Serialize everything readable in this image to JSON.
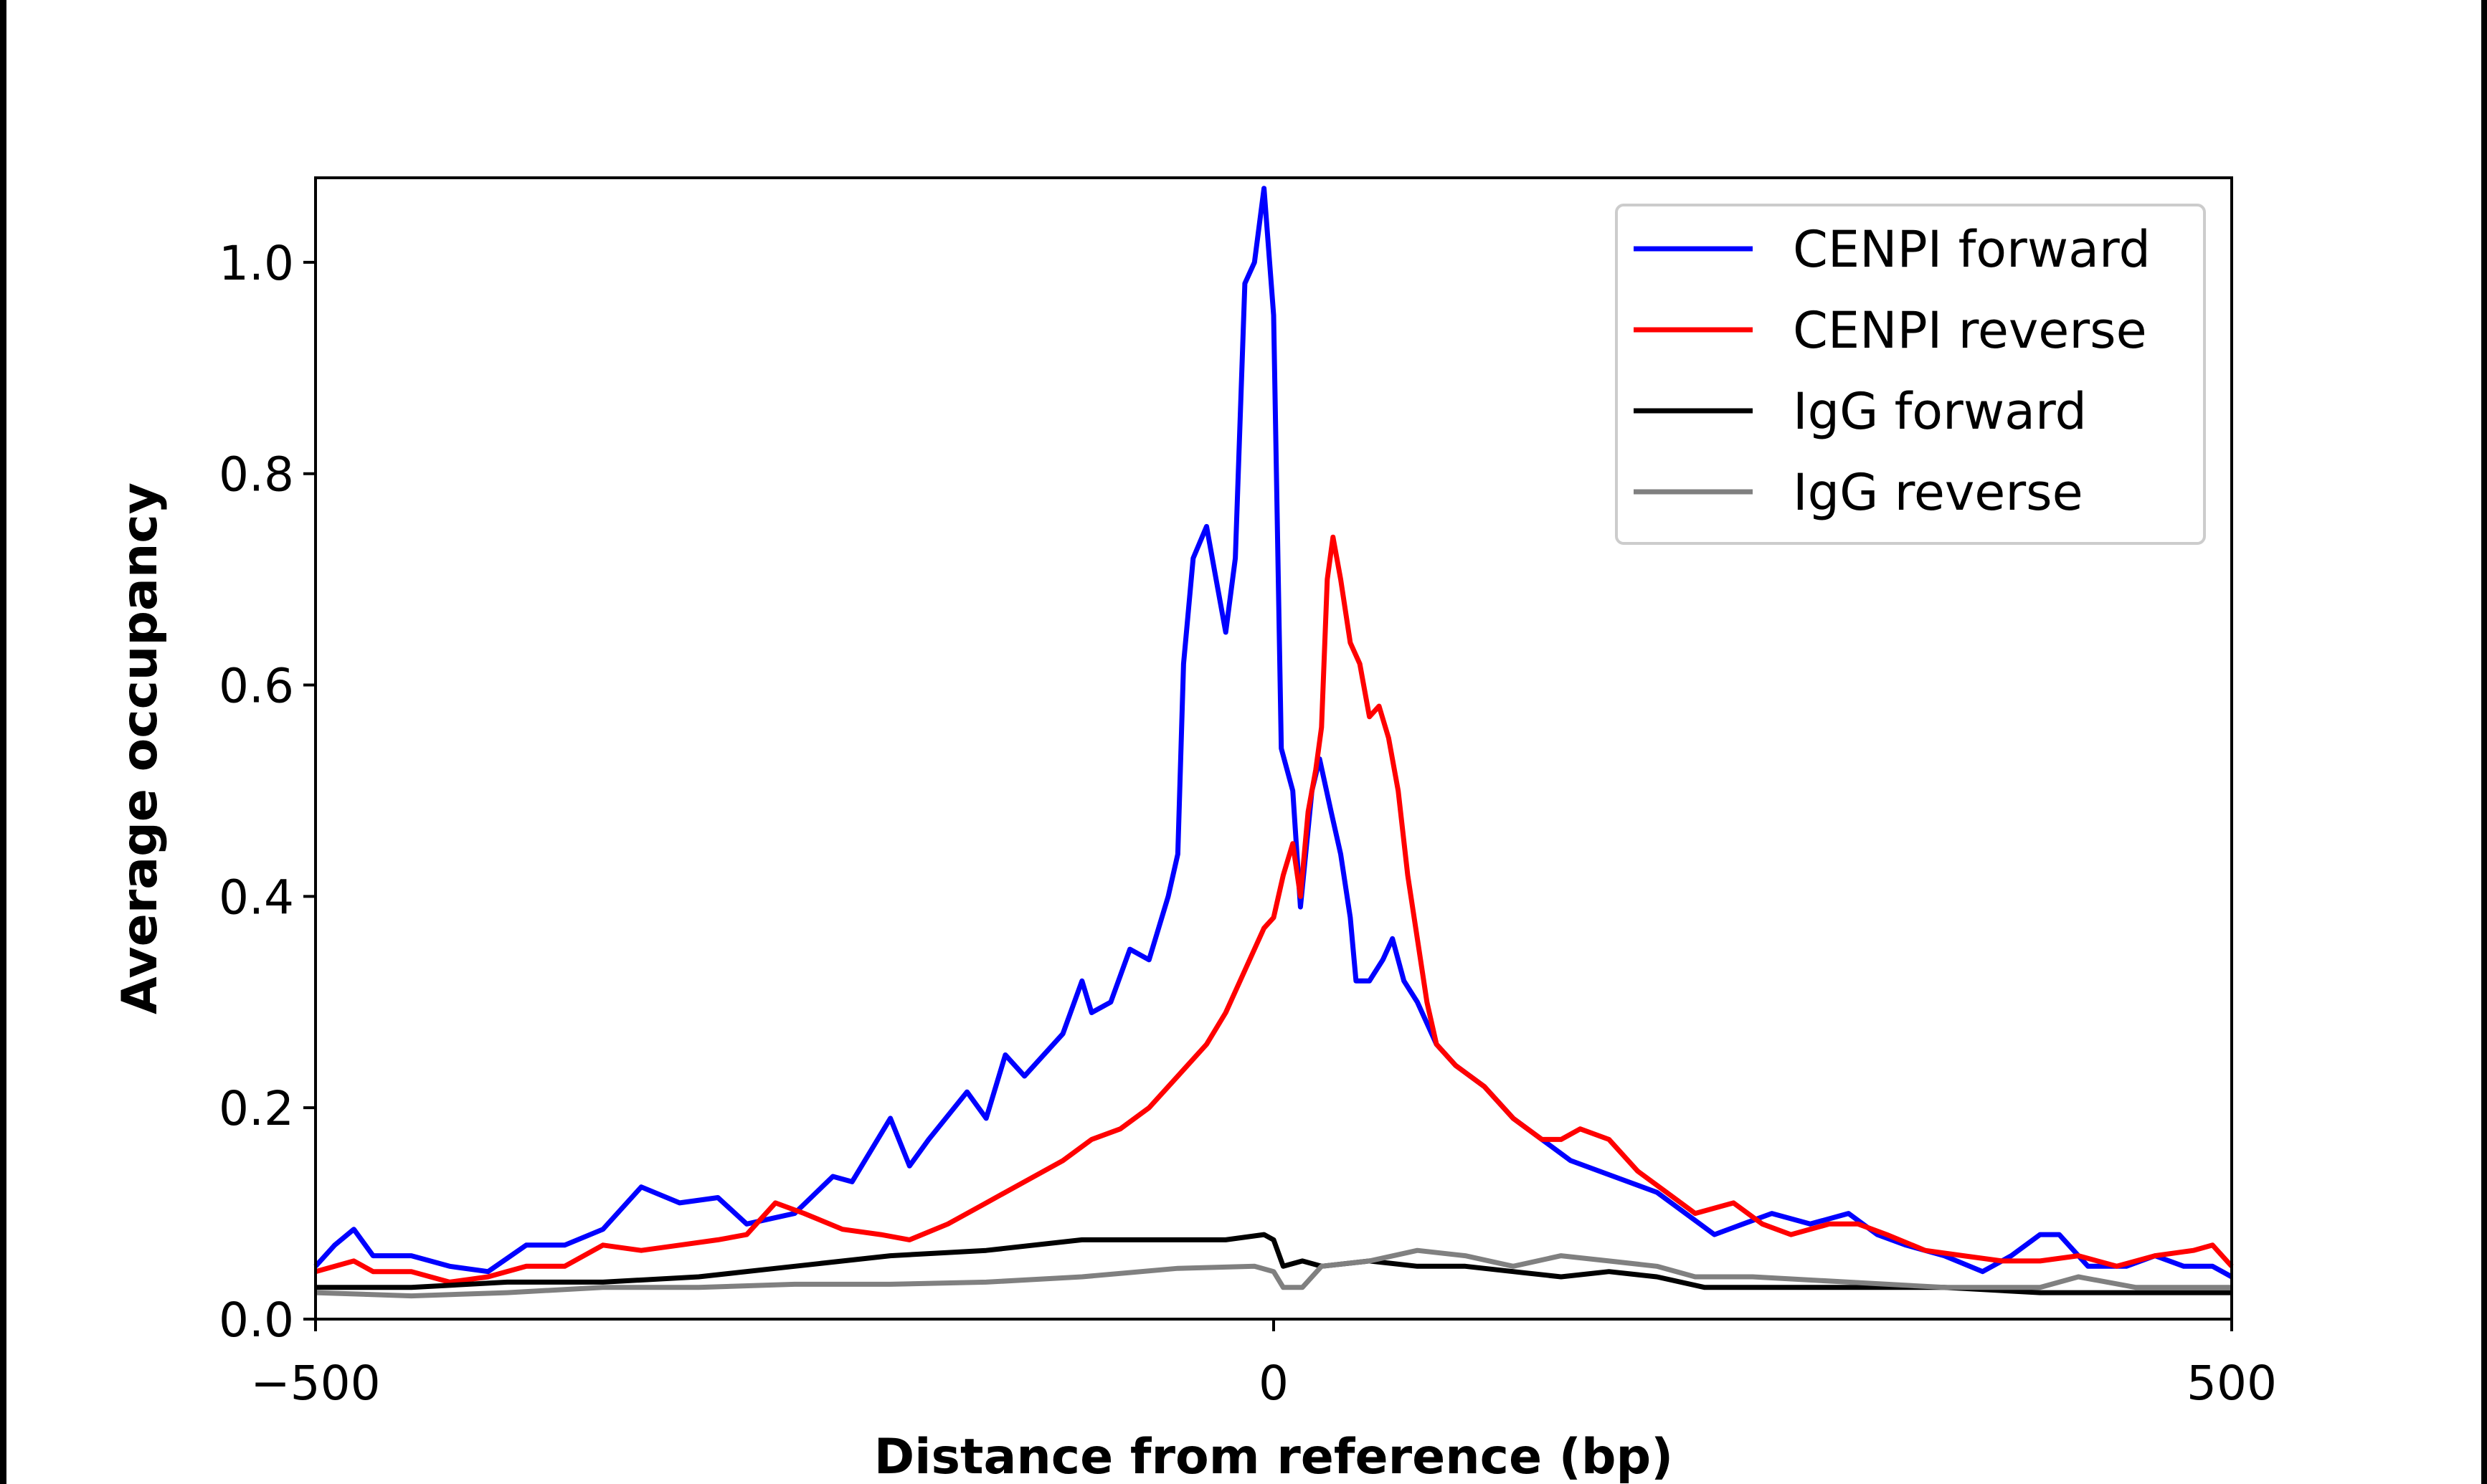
{
  "chart_data": {
    "type": "line",
    "title": "",
    "xlabel": "Distance from reference (bp)",
    "ylabel": "Average occupancy",
    "xlim": [
      -500,
      500
    ],
    "ylim": [
      0,
      1.08
    ],
    "xticks": [
      -500,
      0,
      500
    ],
    "xtick_labels": [
      "−500",
      "0",
      "500"
    ],
    "yticks": [
      0,
      0.2,
      0.4,
      0.6,
      0.8,
      1.0
    ],
    "ytick_labels": [
      "0.0",
      "0.2",
      "0.4",
      "0.6",
      "0.8",
      "1.0"
    ],
    "grid": false,
    "legend_position": "top-right",
    "series": [
      {
        "name": "CENPI forward",
        "color": "#0000ff",
        "x": [
          -500,
          -490,
          -480,
          -470,
          -450,
          -430,
          -410,
          -390,
          -370,
          -350,
          -330,
          -310,
          -290,
          -275,
          -250,
          -230,
          -220,
          -200,
          -190,
          -180,
          -160,
          -150,
          -140,
          -130,
          -110,
          -100,
          -95,
          -85,
          -75,
          -65,
          -55,
          -50,
          -47,
          -42,
          -35,
          -30,
          -25,
          -20,
          -15,
          -10,
          -5,
          0,
          4,
          10,
          14,
          20,
          24,
          30,
          35,
          40,
          43,
          50,
          57,
          62,
          68,
          75,
          85,
          95,
          110,
          125,
          140,
          155,
          170,
          185,
          200,
          215,
          230,
          245,
          260,
          280,
          300,
          315,
          330,
          350,
          370,
          385,
          400,
          410,
          425,
          445,
          460,
          475,
          490,
          500
        ],
        "y": [
          0.05,
          0.07,
          0.085,
          0.06,
          0.06,
          0.05,
          0.045,
          0.07,
          0.07,
          0.085,
          0.125,
          0.11,
          0.115,
          0.09,
          0.1,
          0.135,
          0.13,
          0.19,
          0.145,
          0.17,
          0.215,
          0.19,
          0.25,
          0.23,
          0.27,
          0.32,
          0.29,
          0.3,
          0.35,
          0.34,
          0.4,
          0.44,
          0.62,
          0.72,
          0.75,
          0.7,
          0.65,
          0.72,
          0.98,
          1.0,
          1.07,
          0.95,
          0.54,
          0.5,
          0.39,
          0.5,
          0.53,
          0.48,
          0.44,
          0.38,
          0.32,
          0.32,
          0.34,
          0.36,
          0.32,
          0.3,
          0.26,
          0.24,
          0.22,
          0.19,
          0.17,
          0.15,
          0.14,
          0.13,
          0.12,
          0.1,
          0.08,
          0.09,
          0.1,
          0.09,
          0.1,
          0.08,
          0.07,
          0.06,
          0.045,
          0.06,
          0.08,
          0.08,
          0.05,
          0.05,
          0.06,
          0.05,
          0.05,
          0.04
        ]
      },
      {
        "name": "CENPI reverse",
        "color": "#ff0000",
        "x": [
          -500,
          -480,
          -470,
          -450,
          -430,
          -410,
          -390,
          -370,
          -350,
          -330,
          -310,
          -290,
          -275,
          -260,
          -245,
          -225,
          -205,
          -190,
          -170,
          -150,
          -130,
          -110,
          -95,
          -80,
          -65,
          -50,
          -35,
          -25,
          -15,
          -5,
          0,
          5,
          10,
          14,
          18,
          22,
          25,
          28,
          31,
          35,
          40,
          45,
          50,
          55,
          60,
          65,
          70,
          75,
          80,
          85,
          95,
          110,
          125,
          140,
          150,
          160,
          175,
          190,
          205,
          220,
          240,
          255,
          270,
          290,
          305,
          320,
          340,
          360,
          380,
          400,
          420,
          440,
          460,
          480,
          490,
          500
        ],
        "y": [
          0.045,
          0.055,
          0.045,
          0.045,
          0.035,
          0.04,
          0.05,
          0.05,
          0.07,
          0.065,
          0.07,
          0.075,
          0.08,
          0.11,
          0.1,
          0.085,
          0.08,
          0.075,
          0.09,
          0.11,
          0.13,
          0.15,
          0.17,
          0.18,
          0.2,
          0.23,
          0.26,
          0.29,
          0.33,
          0.37,
          0.38,
          0.42,
          0.45,
          0.4,
          0.48,
          0.52,
          0.56,
          0.7,
          0.74,
          0.7,
          0.64,
          0.62,
          0.57,
          0.58,
          0.55,
          0.5,
          0.42,
          0.36,
          0.3,
          0.26,
          0.24,
          0.22,
          0.19,
          0.17,
          0.17,
          0.18,
          0.17,
          0.14,
          0.12,
          0.1,
          0.11,
          0.09,
          0.08,
          0.09,
          0.09,
          0.08,
          0.065,
          0.06,
          0.055,
          0.055,
          0.06,
          0.05,
          0.06,
          0.065,
          0.07,
          0.05
        ]
      },
      {
        "name": "IgG forward",
        "color": "#000000",
        "x": [
          -500,
          -450,
          -400,
          -350,
          -300,
          -250,
          -200,
          -150,
          -100,
          -75,
          -50,
          -25,
          -5,
          0,
          5,
          15,
          25,
          50,
          75,
          100,
          125,
          150,
          175,
          200,
          225,
          250,
          300,
          350,
          400,
          450,
          500
        ],
        "y": [
          0.03,
          0.03,
          0.035,
          0.035,
          0.04,
          0.05,
          0.06,
          0.065,
          0.075,
          0.075,
          0.075,
          0.075,
          0.08,
          0.075,
          0.05,
          0.055,
          0.05,
          0.055,
          0.05,
          0.05,
          0.045,
          0.04,
          0.045,
          0.04,
          0.03,
          0.03,
          0.03,
          0.03,
          0.025,
          0.025,
          0.025
        ]
      },
      {
        "name": "IgG reverse",
        "color": "#808080",
        "x": [
          -500,
          -450,
          -400,
          -350,
          -300,
          -250,
          -200,
          -150,
          -100,
          -50,
          -10,
          0,
          5,
          15,
          25,
          50,
          75,
          100,
          125,
          150,
          175,
          200,
          220,
          250,
          300,
          350,
          400,
          420,
          450,
          500
        ],
        "y": [
          0.025,
          0.022,
          0.025,
          0.03,
          0.03,
          0.033,
          0.033,
          0.035,
          0.04,
          0.048,
          0.05,
          0.045,
          0.03,
          0.03,
          0.05,
          0.055,
          0.065,
          0.06,
          0.05,
          0.06,
          0.055,
          0.05,
          0.04,
          0.04,
          0.035,
          0.03,
          0.03,
          0.04,
          0.03,
          0.03
        ]
      }
    ]
  }
}
